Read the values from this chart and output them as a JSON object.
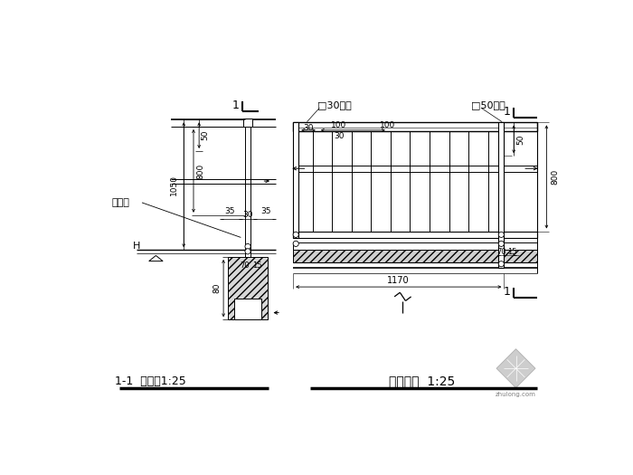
{
  "bg_color": "#ffffff",
  "title_left": "1-1  剖面图1:25",
  "title_right": "室内栏杆  1:25",
  "label_yumajian": "预埋件",
  "label_30gang": "□30钢管",
  "label_50gang": "□50钢管",
  "dim_50": "50",
  "dim_800": "800",
  "dim_1050": "1050",
  "dim_35L": "35",
  "dim_30": "30",
  "dim_35R": "35",
  "dim_70": "70",
  "dim_15": "15",
  "dim_80": "80",
  "dim_H": "H",
  "dim_50r": "50",
  "dim_800r": "800",
  "dim_30bars": "30",
  "dim_100a": "100",
  "dim_100b": "100",
  "dim_1170": "1170",
  "section_mark": "1"
}
